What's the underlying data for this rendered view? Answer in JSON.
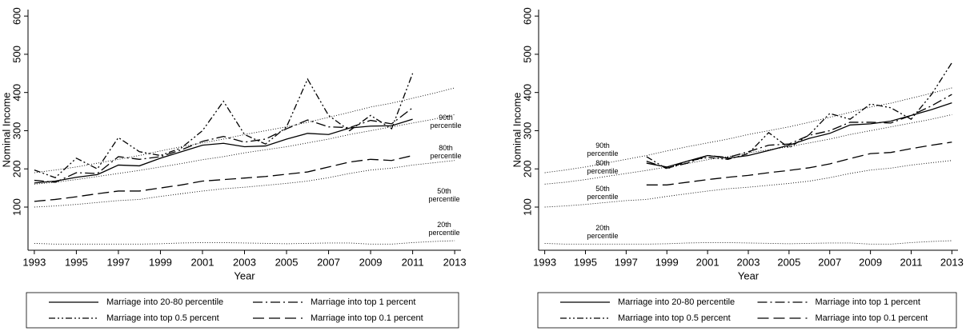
{
  "chart_data": [
    {
      "type": "line",
      "x_label": "Year",
      "y_label": "Nominal Income",
      "xlim": [
        1992.7,
        2013.3
      ],
      "xticks": [
        1993,
        1995,
        1997,
        1999,
        2001,
        2003,
        2005,
        2007,
        2009,
        2011,
        2013
      ],
      "ylim": [
        -13,
        617
      ],
      "yticks": [
        100,
        200,
        300,
        400,
        500,
        600
      ],
      "series": [
        {
          "name": "Marriage into 20-80 percentile",
          "color": "#000000",
          "style": "solid",
          "x": [
            1993,
            1994,
            1995,
            1996,
            1997,
            1998,
            1999,
            2000,
            2001,
            2002,
            2003,
            2004,
            2005,
            2006,
            2007,
            2008,
            2009,
            2010,
            2011
          ],
          "values": [
            163,
            168,
            178,
            185,
            210,
            208,
            228,
            245,
            262,
            267,
            258,
            260,
            278,
            293,
            290,
            307,
            312,
            313,
            330
          ]
        },
        {
          "name": "Marriage into top 1 percent",
          "color": "#000000",
          "style": "dash-dot",
          "x": [
            1993,
            1994,
            1995,
            1996,
            1997,
            1998,
            1999,
            2000,
            2001,
            2002,
            2003,
            2004,
            2005,
            2006,
            2007,
            2008,
            2009,
            2010,
            2011
          ],
          "values": [
            170,
            165,
            190,
            188,
            232,
            225,
            232,
            250,
            272,
            285,
            270,
            278,
            305,
            328,
            310,
            308,
            327,
            318,
            360
          ]
        },
        {
          "name": "Marriage into top 0.5 percent",
          "color": "#000000",
          "style": "dash-dot-dot",
          "x": [
            1993,
            1994,
            1995,
            1996,
            1997,
            1998,
            1999,
            2000,
            2001,
            2002,
            2003,
            2004,
            2005,
            2006,
            2007,
            2008,
            2009,
            2010,
            2011
          ],
          "values": [
            197,
            177,
            228,
            200,
            282,
            245,
            235,
            255,
            300,
            377,
            290,
            265,
            310,
            435,
            340,
            300,
            340,
            305,
            450
          ]
        },
        {
          "name": "Marriage into top 0.1 percent",
          "color": "#000000",
          "style": "long-dash",
          "x": [
            1993,
            1994,
            1995,
            1996,
            1997,
            1998,
            1999,
            2000,
            2001,
            2002,
            2003,
            2004,
            2005,
            2006,
            2007,
            2008,
            2009,
            2010,
            2011
          ],
          "values": [
            115,
            120,
            127,
            135,
            142,
            142,
            150,
            158,
            168,
            172,
            176,
            180,
            186,
            192,
            205,
            218,
            225,
            222,
            235
          ]
        }
      ],
      "percentile_lines": [
        {
          "label": [
            "90th",
            "percentile"
          ],
          "style": "dotted",
          "color": "#000000",
          "x": [
            1993,
            1994,
            1995,
            1996,
            1997,
            1998,
            1999,
            2000,
            2001,
            2002,
            2003,
            2004,
            2005,
            2006,
            2007,
            2008,
            2009,
            2010,
            2011,
            2012,
            2013
          ],
          "values": [
            190,
            197,
            205,
            215,
            225,
            235,
            247,
            258,
            268,
            278,
            290,
            300,
            310,
            322,
            335,
            348,
            362,
            372,
            385,
            398,
            412
          ]
        },
        {
          "label": [
            "80th",
            "percentile"
          ],
          "style": "dotted",
          "color": "#000000",
          "x": [
            1993,
            1994,
            1995,
            1996,
            1997,
            1998,
            1999,
            2000,
            2001,
            2002,
            2003,
            2004,
            2005,
            2006,
            2007,
            2008,
            2009,
            2010,
            2011,
            2012,
            2013
          ],
          "values": [
            160,
            165,
            172,
            180,
            188,
            196,
            205,
            214,
            224,
            232,
            242,
            250,
            258,
            268,
            278,
            290,
            300,
            310,
            320,
            330,
            342
          ]
        },
        {
          "label": [
            "50th",
            "percentile"
          ],
          "style": "dotted",
          "color": "#000000",
          "x": [
            1993,
            1994,
            1995,
            1996,
            1997,
            1998,
            1999,
            2000,
            2001,
            2002,
            2003,
            2004,
            2005,
            2006,
            2007,
            2008,
            2009,
            2010,
            2011,
            2012,
            2013
          ],
          "values": [
            100,
            103,
            107,
            112,
            117,
            120,
            128,
            135,
            142,
            148,
            152,
            157,
            162,
            168,
            177,
            188,
            197,
            202,
            210,
            216,
            222
          ]
        },
        {
          "label": [
            "20th",
            "percentile"
          ],
          "style": "dotted",
          "color": "#000000",
          "x": [
            1993,
            1994,
            1995,
            1996,
            1997,
            1998,
            1999,
            2000,
            2001,
            2002,
            2003,
            2004,
            2005,
            2006,
            2007,
            2008,
            2009,
            2010,
            2011,
            2012,
            2013
          ],
          "values": [
            5,
            3,
            3,
            3,
            3,
            3,
            4,
            6,
            7,
            7,
            6,
            5,
            4,
            5,
            6,
            6,
            3,
            3,
            7,
            10,
            12
          ]
        }
      ]
    },
    {
      "type": "line",
      "x_label": "Year",
      "y_label": "Nominal Income",
      "xlim": [
        1992.7,
        2013.3
      ],
      "xticks": [
        1993,
        1995,
        1997,
        1999,
        2001,
        2003,
        2005,
        2007,
        2009,
        2011,
        2013
      ],
      "ylim": [
        -13,
        617
      ],
      "yticks": [
        100,
        200,
        300,
        400,
        500,
        600
      ],
      "series": [
        {
          "name": "Marriage into 20-80 percentile",
          "color": "#000000",
          "style": "solid",
          "x": [
            1998,
            1999,
            2000,
            2001,
            2002,
            2003,
            2004,
            2005,
            2006,
            2007,
            2008,
            2009,
            2010,
            2011,
            2012,
            2013
          ],
          "values": [
            215,
            205,
            220,
            235,
            228,
            235,
            248,
            262,
            280,
            293,
            315,
            318,
            325,
            340,
            355,
            373
          ]
        },
        {
          "name": "Marriage into top 1 percent",
          "color": "#000000",
          "style": "dash-dot",
          "x": [
            1998,
            1999,
            2000,
            2001,
            2002,
            2003,
            2004,
            2005,
            2006,
            2007,
            2008,
            2009,
            2010,
            2011,
            2012,
            2013
          ],
          "values": [
            220,
            202,
            215,
            235,
            230,
            245,
            262,
            265,
            288,
            300,
            322,
            322,
            320,
            340,
            365,
            395
          ]
        },
        {
          "name": "Marriage into top 0.5 percent",
          "color": "#000000",
          "style": "dash-dot-dot",
          "x": [
            1998,
            1999,
            2000,
            2001,
            2002,
            2003,
            2004,
            2005,
            2006,
            2007,
            2008,
            2009,
            2010,
            2011,
            2012,
            2013
          ],
          "values": [
            232,
            200,
            220,
            230,
            225,
            240,
            295,
            255,
            290,
            345,
            330,
            370,
            360,
            330,
            395,
            478
          ]
        },
        {
          "name": "Marriage into top 0.1 percent",
          "color": "#000000",
          "style": "long-dash",
          "x": [
            1998,
            1999,
            2000,
            2001,
            2002,
            2003,
            2004,
            2005,
            2006,
            2007,
            2008,
            2009,
            2010,
            2011,
            2012,
            2013
          ],
          "values": [
            158,
            158,
            165,
            172,
            178,
            183,
            190,
            196,
            203,
            213,
            227,
            240,
            243,
            253,
            262,
            270
          ]
        }
      ],
      "percentile_lines": [
        {
          "label": [
            "90th",
            "percentile"
          ],
          "style": "dotted",
          "color": "#000000",
          "x": [
            1993,
            1994,
            1995,
            1996,
            1997,
            1998,
            1999,
            2000,
            2001,
            2002,
            2003,
            2004,
            2005,
            2006,
            2007,
            2008,
            2009,
            2010,
            2011,
            2012,
            2013
          ],
          "values": [
            190,
            197,
            205,
            215,
            225,
            235,
            247,
            258,
            268,
            278,
            290,
            300,
            310,
            322,
            335,
            348,
            362,
            372,
            385,
            398,
            412
          ]
        },
        {
          "label": [
            "80th",
            "percentile"
          ],
          "style": "dotted",
          "color": "#000000",
          "x": [
            1993,
            1994,
            1995,
            1996,
            1997,
            1998,
            1999,
            2000,
            2001,
            2002,
            2003,
            2004,
            2005,
            2006,
            2007,
            2008,
            2009,
            2010,
            2011,
            2012,
            2013
          ],
          "values": [
            160,
            165,
            172,
            180,
            188,
            196,
            205,
            214,
            224,
            232,
            242,
            250,
            258,
            268,
            278,
            290,
            300,
            310,
            320,
            330,
            342
          ]
        },
        {
          "label": [
            "50th",
            "percentile"
          ],
          "style": "dotted",
          "color": "#000000",
          "x": [
            1993,
            1994,
            1995,
            1996,
            1997,
            1998,
            1999,
            2000,
            2001,
            2002,
            2003,
            2004,
            2005,
            2006,
            2007,
            2008,
            2009,
            2010,
            2011,
            2012,
            2013
          ],
          "values": [
            100,
            103,
            107,
            112,
            117,
            120,
            128,
            135,
            142,
            148,
            152,
            157,
            162,
            168,
            177,
            188,
            197,
            202,
            210,
            216,
            222
          ]
        },
        {
          "label": [
            "20th",
            "percentile"
          ],
          "style": "dotted",
          "color": "#000000",
          "x": [
            1993,
            1994,
            1995,
            1996,
            1997,
            1998,
            1999,
            2000,
            2001,
            2002,
            2003,
            2004,
            2005,
            2006,
            2007,
            2008,
            2009,
            2010,
            2011,
            2012,
            2013
          ],
          "values": [
            5,
            3,
            3,
            3,
            3,
            3,
            4,
            6,
            7,
            7,
            6,
            5,
            4,
            5,
            6,
            6,
            3,
            3,
            7,
            10,
            12
          ]
        }
      ]
    }
  ]
}
